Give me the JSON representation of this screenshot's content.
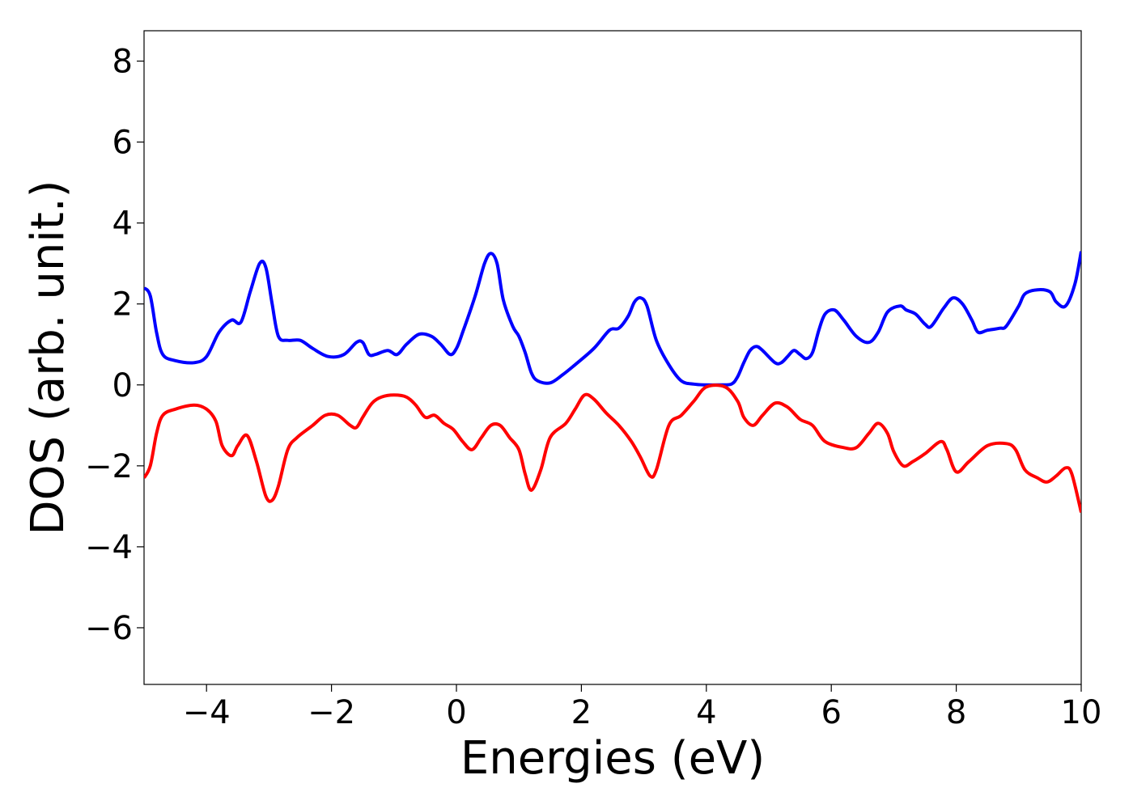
{
  "chart_data": {
    "type": "line",
    "title": "",
    "xlabel": "Energies (eV)",
    "ylabel": "DOS (arb. unit.)",
    "xlim": [
      -5,
      10
    ],
    "ylim": [
      -7.4,
      8.75
    ],
    "xticks": [
      -4,
      -2,
      0,
      2,
      4,
      6,
      8,
      10
    ],
    "yticks": [
      -6,
      -4,
      -2,
      0,
      2,
      4,
      6,
      8
    ],
    "xtick_labels": [
      "−4",
      "−2",
      "0",
      "2",
      "4",
      "6",
      "8",
      "10"
    ],
    "ytick_labels": [
      "−6",
      "−4",
      "−2",
      "0",
      "2",
      "4",
      "6",
      "8"
    ],
    "grid": false,
    "legend": "none",
    "series": [
      {
        "color": "#0000ff",
        "x": [
          -5.0,
          -4.9,
          -4.8,
          -4.7,
          -4.5,
          -4.2,
          -4.0,
          -3.8,
          -3.6,
          -3.45,
          -3.3,
          -3.15,
          -3.05,
          -2.95,
          -2.85,
          -2.7,
          -2.5,
          -2.3,
          -2.05,
          -1.8,
          -1.6,
          -1.5,
          -1.4,
          -1.3,
          -1.1,
          -0.95,
          -0.8,
          -0.6,
          -0.4,
          -0.25,
          -0.1,
          0.0,
          0.1,
          0.3,
          0.45,
          0.55,
          0.65,
          0.75,
          0.9,
          1.0,
          1.1,
          1.2,
          1.3,
          1.5,
          1.7,
          1.9,
          2.2,
          2.45,
          2.6,
          2.75,
          2.85,
          2.95,
          3.05,
          3.2,
          3.4,
          3.6,
          3.8,
          4.0,
          4.2,
          4.4,
          4.5,
          4.6,
          4.7,
          4.8,
          4.9,
          5.1,
          5.2,
          5.3,
          5.4,
          5.5,
          5.6,
          5.7,
          5.8,
          5.9,
          6.05,
          6.2,
          6.4,
          6.6,
          6.75,
          6.9,
          7.1,
          7.2,
          7.35,
          7.5,
          7.6,
          7.8,
          7.95,
          8.1,
          8.25,
          8.35,
          8.5,
          8.7,
          8.8,
          9.0,
          9.1,
          9.3,
          9.5,
          9.6,
          9.75,
          9.9,
          10.0
        ],
        "y": [
          2.4,
          2.2,
          1.3,
          0.75,
          0.6,
          0.55,
          0.7,
          1.3,
          1.6,
          1.55,
          2.3,
          3.0,
          2.9,
          2.0,
          1.2,
          1.1,
          1.1,
          0.9,
          0.7,
          0.75,
          1.05,
          1.05,
          0.75,
          0.75,
          0.85,
          0.75,
          1.0,
          1.25,
          1.2,
          1.0,
          0.75,
          0.9,
          1.3,
          2.2,
          3.0,
          3.25,
          3.0,
          2.1,
          1.45,
          1.2,
          0.8,
          0.3,
          0.1,
          0.05,
          0.25,
          0.5,
          0.9,
          1.35,
          1.4,
          1.7,
          2.05,
          2.15,
          1.95,
          1.1,
          0.5,
          0.1,
          0.02,
          0.0,
          0.0,
          0.02,
          0.2,
          0.55,
          0.85,
          0.95,
          0.85,
          0.55,
          0.55,
          0.7,
          0.85,
          0.75,
          0.65,
          0.8,
          1.35,
          1.75,
          1.85,
          1.6,
          1.2,
          1.05,
          1.3,
          1.8,
          1.95,
          1.85,
          1.75,
          1.5,
          1.45,
          1.9,
          2.15,
          2.0,
          1.6,
          1.3,
          1.35,
          1.4,
          1.45,
          1.95,
          2.25,
          2.35,
          2.3,
          2.05,
          1.95,
          2.5,
          3.3
        ]
      },
      {
        "color": "#ff0000",
        "x": [
          -5.0,
          -4.9,
          -4.8,
          -4.7,
          -4.5,
          -4.2,
          -4.0,
          -3.85,
          -3.75,
          -3.6,
          -3.5,
          -3.35,
          -3.2,
          -3.05,
          -2.95,
          -2.85,
          -2.7,
          -2.55,
          -2.3,
          -2.1,
          -1.9,
          -1.7,
          -1.6,
          -1.5,
          -1.35,
          -1.2,
          -1.0,
          -0.8,
          -0.65,
          -0.5,
          -0.35,
          -0.2,
          -0.05,
          0.1,
          0.25,
          0.4,
          0.55,
          0.7,
          0.85,
          1.0,
          1.1,
          1.2,
          1.35,
          1.5,
          1.75,
          1.9,
          2.05,
          2.2,
          2.4,
          2.6,
          2.8,
          2.95,
          3.1,
          3.2,
          3.4,
          3.6,
          3.8,
          4.0,
          4.3,
          4.5,
          4.6,
          4.75,
          4.9,
          5.1,
          5.3,
          5.5,
          5.7,
          5.9,
          6.2,
          6.4,
          6.6,
          6.75,
          6.9,
          7.0,
          7.15,
          7.3,
          7.5,
          7.75,
          7.85,
          8.0,
          8.2,
          8.5,
          8.8,
          8.95,
          9.1,
          9.3,
          9.45,
          9.6,
          9.75,
          9.85,
          10.0
        ],
        "y": [
          -2.3,
          -2.0,
          -1.2,
          -0.75,
          -0.6,
          -0.5,
          -0.6,
          -0.9,
          -1.5,
          -1.75,
          -1.5,
          -1.25,
          -1.9,
          -2.75,
          -2.85,
          -2.5,
          -1.6,
          -1.3,
          -1.0,
          -0.75,
          -0.75,
          -1.0,
          -1.05,
          -0.8,
          -0.45,
          -0.3,
          -0.25,
          -0.3,
          -0.5,
          -0.8,
          -0.75,
          -0.95,
          -1.1,
          -1.4,
          -1.6,
          -1.3,
          -1.0,
          -1.0,
          -1.3,
          -1.6,
          -2.2,
          -2.6,
          -2.1,
          -1.3,
          -0.95,
          -0.6,
          -0.25,
          -0.35,
          -0.7,
          -1.0,
          -1.4,
          -1.8,
          -2.25,
          -2.1,
          -1.0,
          -0.75,
          -0.4,
          -0.05,
          -0.05,
          -0.4,
          -0.8,
          -1.0,
          -0.75,
          -0.45,
          -0.55,
          -0.85,
          -1.0,
          -1.4,
          -1.55,
          -1.55,
          -1.2,
          -0.95,
          -1.2,
          -1.65,
          -2.0,
          -1.9,
          -1.7,
          -1.4,
          -1.6,
          -2.15,
          -1.9,
          -1.5,
          -1.45,
          -1.6,
          -2.1,
          -2.3,
          -2.4,
          -2.25,
          -2.05,
          -2.2,
          -3.15
        ]
      }
    ]
  }
}
